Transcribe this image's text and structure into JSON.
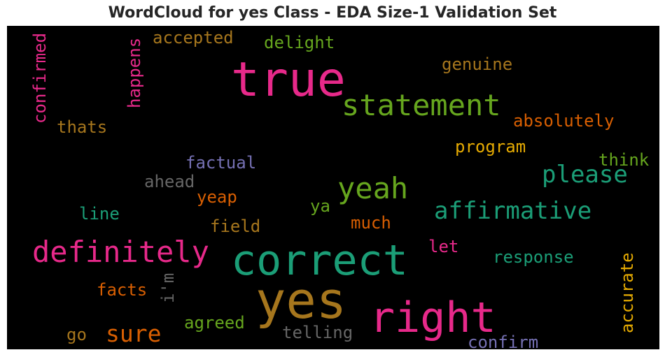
{
  "title": "WordCloud for yes Class - EDA Size-1 Validation Set",
  "words": [
    {
      "id": "true",
      "text": "true",
      "color": "#e7298a"
    },
    {
      "id": "statement",
      "text": "statement",
      "color": "#66a61e"
    },
    {
      "id": "yeah",
      "text": "yeah",
      "color": "#66a61e"
    },
    {
      "id": "please",
      "text": "please",
      "color": "#1b9e77"
    },
    {
      "id": "affirmative",
      "text": "affirmative",
      "color": "#1b9e77"
    },
    {
      "id": "definitely",
      "text": "definitely",
      "color": "#e7298a"
    },
    {
      "id": "correct",
      "text": "correct",
      "color": "#1b9e77"
    },
    {
      "id": "yes",
      "text": "yes",
      "color": "#a6761d"
    },
    {
      "id": "right",
      "text": "right",
      "color": "#e7298a"
    },
    {
      "id": "sure",
      "text": "sure",
      "color": "#d95f02"
    },
    {
      "id": "confirmed",
      "text": "confirmed",
      "color": "#e7298a"
    },
    {
      "id": "happens",
      "text": "happens",
      "color": "#e7298a"
    },
    {
      "id": "accepted",
      "text": "accepted",
      "color": "#a6761d"
    },
    {
      "id": "delight",
      "text": "delight",
      "color": "#66a61e"
    },
    {
      "id": "genuine",
      "text": "genuine",
      "color": "#a6761d"
    },
    {
      "id": "absolutely",
      "text": "absolutely",
      "color": "#d95f02"
    },
    {
      "id": "thats",
      "text": "thats",
      "color": "#a6761d"
    },
    {
      "id": "program",
      "text": "program",
      "color": "#e6ab02"
    },
    {
      "id": "think",
      "text": "think",
      "color": "#66a61e"
    },
    {
      "id": "factual",
      "text": "factual",
      "color": "#7570b3"
    },
    {
      "id": "ahead",
      "text": "ahead",
      "color": "#666666"
    },
    {
      "id": "yeap",
      "text": "yeap",
      "color": "#d95f02"
    },
    {
      "id": "ya",
      "text": "ya",
      "color": "#66a61e"
    },
    {
      "id": "line",
      "text": "line",
      "color": "#1b9e77"
    },
    {
      "id": "field",
      "text": "field",
      "color": "#a6761d"
    },
    {
      "id": "much",
      "text": "much",
      "color": "#d95f02"
    },
    {
      "id": "let",
      "text": "let",
      "color": "#e7298a"
    },
    {
      "id": "response",
      "text": "response",
      "color": "#1b9e77"
    },
    {
      "id": "accurate",
      "text": "accurate",
      "color": "#e6ab02"
    },
    {
      "id": "facts",
      "text": "facts",
      "color": "#d95f02"
    },
    {
      "id": "im",
      "text": "i'm",
      "color": "#666666"
    },
    {
      "id": "agreed",
      "text": "agreed",
      "color": "#66a61e"
    },
    {
      "id": "telling",
      "text": "telling",
      "color": "#666666"
    },
    {
      "id": "go",
      "text": "go",
      "color": "#a6761d"
    },
    {
      "id": "confirm",
      "text": "confirm",
      "color": "#7570b3"
    }
  ]
}
